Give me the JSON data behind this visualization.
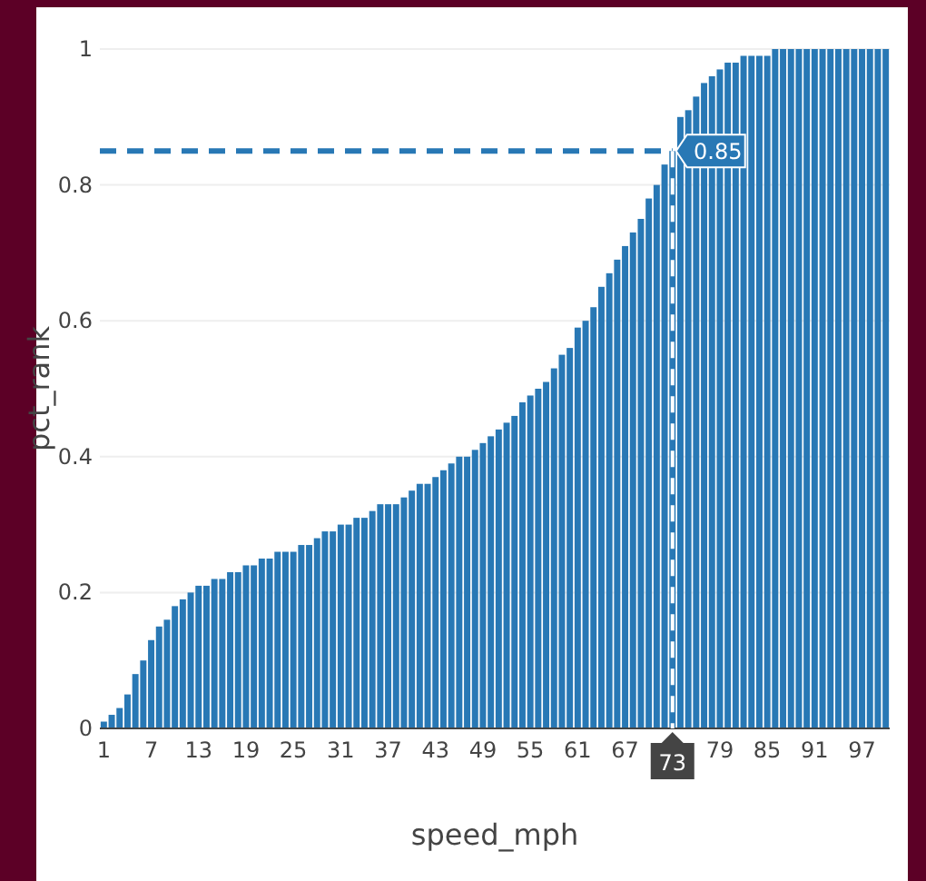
{
  "chart_data": {
    "type": "bar",
    "xlabel": "speed_mph",
    "ylabel": "pct_rank",
    "color": "#2878b5",
    "x": [
      1,
      2,
      3,
      4,
      5,
      6,
      7,
      8,
      9,
      10,
      11,
      12,
      13,
      14,
      15,
      16,
      17,
      18,
      19,
      20,
      21,
      22,
      23,
      24,
      25,
      26,
      27,
      28,
      29,
      30,
      31,
      32,
      33,
      34,
      35,
      36,
      37,
      38,
      39,
      40,
      41,
      42,
      43,
      44,
      45,
      46,
      47,
      48,
      49,
      50,
      51,
      52,
      53,
      54,
      55,
      56,
      57,
      58,
      59,
      60,
      61,
      62,
      63,
      64,
      65,
      66,
      67,
      68,
      69,
      70,
      71,
      72,
      73,
      74,
      75,
      76,
      77,
      78,
      79,
      80,
      81,
      82,
      83,
      84,
      85,
      86,
      87,
      88,
      89,
      90,
      91,
      92,
      93,
      94,
      95,
      96,
      97,
      98,
      99,
      100
    ],
    "values": [
      0.01,
      0.02,
      0.03,
      0.05,
      0.08,
      0.1,
      0.13,
      0.15,
      0.16,
      0.18,
      0.19,
      0.2,
      0.21,
      0.21,
      0.22,
      0.22,
      0.23,
      0.23,
      0.24,
      0.24,
      0.25,
      0.25,
      0.26,
      0.26,
      0.26,
      0.27,
      0.27,
      0.28,
      0.29,
      0.29,
      0.3,
      0.3,
      0.31,
      0.31,
      0.32,
      0.33,
      0.33,
      0.33,
      0.34,
      0.35,
      0.36,
      0.36,
      0.37,
      0.38,
      0.39,
      0.4,
      0.4,
      0.41,
      0.42,
      0.43,
      0.44,
      0.45,
      0.46,
      0.48,
      0.49,
      0.5,
      0.51,
      0.53,
      0.55,
      0.56,
      0.59,
      0.6,
      0.62,
      0.65,
      0.67,
      0.69,
      0.71,
      0.73,
      0.75,
      0.78,
      0.8,
      0.83,
      0.85,
      0.9,
      0.91,
      0.93,
      0.95,
      0.96,
      0.97,
      0.98,
      0.98,
      0.99,
      0.99,
      0.99,
      0.99,
      1,
      1,
      1,
      1,
      1,
      1,
      1,
      1,
      1,
      1,
      1,
      1,
      1,
      1,
      1
    ],
    "xlim": [
      0.5,
      100.5
    ],
    "xticks": [
      1,
      7,
      13,
      19,
      25,
      31,
      37,
      43,
      49,
      55,
      61,
      67,
      79,
      85,
      91,
      97
    ],
    "ylim": [
      0,
      1
    ],
    "yticks": [
      0,
      0.2,
      0.4,
      0.6,
      0.8,
      1
    ],
    "grid": "y",
    "ref_lines": [
      {
        "axis": "y",
        "value": 0.85,
        "label": "0.85",
        "color": "#2878b5",
        "line_style": "dashed"
      },
      {
        "axis": "x",
        "value": 73,
        "label": "73",
        "color": "#ffffff",
        "line_style": "dashed"
      }
    ]
  }
}
